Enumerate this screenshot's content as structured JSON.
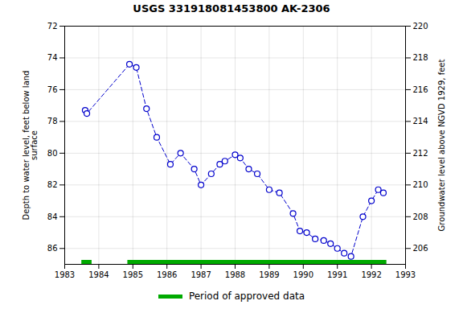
{
  "chart_data": {
    "type": "line",
    "title": "USGS 331918081453800 AK-2306",
    "ylabel": "Depth to water level, feet below land\nsurface",
    "y2label": "Groundwater level above NGVD 1929, feet",
    "x": [
      1983.6,
      1983.65,
      1984.9,
      1985.1,
      1985.4,
      1985.7,
      1986.1,
      1986.4,
      1986.8,
      1987.0,
      1987.3,
      1987.55,
      1987.7,
      1988.0,
      1988.15,
      1988.4,
      1988.65,
      1989.0,
      1989.3,
      1989.7,
      1989.9,
      1990.1,
      1990.35,
      1990.6,
      1990.8,
      1991.0,
      1991.2,
      1991.4,
      1991.75,
      1992.0,
      1992.2,
      1992.35
    ],
    "series": [
      {
        "values": [
          77.3,
          77.5,
          74.4,
          74.6,
          77.2,
          79.0,
          80.7,
          80.0,
          81.0,
          82.0,
          81.3,
          80.7,
          80.5,
          80.1,
          80.3,
          81.0,
          81.3,
          82.3,
          82.5,
          83.8,
          84.9,
          85.0,
          85.4,
          85.5,
          85.7,
          86.0,
          86.3,
          86.5,
          84.0,
          83.0,
          82.3,
          82.5
        ],
        "color": "#0000cc",
        "marker": "circle",
        "line_style": "dashed"
      },
      {
        "name": "Period of approved data",
        "type": "period",
        "color": "#00aa00",
        "starts": [
          1983.5,
          1984.85
        ],
        "ends": [
          1983.8,
          1992.45
        ]
      }
    ],
    "xlim": [
      1983,
      1993
    ],
    "xticks": [
      1983,
      1984,
      1985,
      1986,
      1987,
      1988,
      1989,
      1990,
      1991,
      1992,
      1993
    ],
    "ylim": [
      87,
      72
    ],
    "yticks": [
      72,
      74,
      76,
      78,
      80,
      82,
      84,
      86
    ],
    "y2lim": [
      205,
      220
    ],
    "y2ticks": [
      220,
      218,
      216,
      214,
      212,
      210,
      208,
      206
    ],
    "grid": true,
    "legend": "bottom"
  }
}
